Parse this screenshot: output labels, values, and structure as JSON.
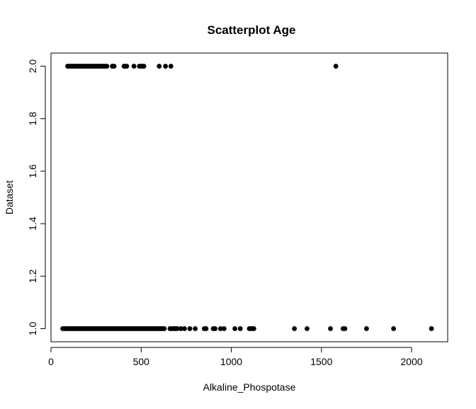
{
  "chart_data": {
    "type": "scatter",
    "title": "Scatterplot Age",
    "xlabel": "Alkaline_Phospotase",
    "ylabel": "Dataset",
    "xlim": [
      0,
      2200
    ],
    "ylim": [
      0.95,
      2.05
    ],
    "x_ticks": [
      0,
      500,
      1000,
      1500,
      2000
    ],
    "y_ticks": [
      1.0,
      1.2,
      1.4,
      1.6,
      1.8,
      2.0
    ],
    "x_tick_labels": [
      "0",
      "500",
      "1000",
      "1500",
      "2000"
    ],
    "y_tick_labels": [
      "1.0",
      "1.2",
      "1.4",
      "1.6",
      "1.8",
      "2.0"
    ],
    "grid": false,
    "point_color": "#000000",
    "series": [
      {
        "y": 2,
        "x": [
          92,
          100,
          108,
          115,
          122,
          128,
          135,
          142,
          150,
          158,
          165,
          172,
          180,
          188,
          195,
          202,
          210,
          218,
          225,
          232,
          240,
          248,
          255,
          262,
          270,
          278,
          285,
          292,
          300,
          310,
          340,
          350,
          405,
          412,
          420,
          460,
          490,
          500,
          508,
          515,
          600,
          635,
          665,
          1580
        ]
      },
      {
        "y": 1,
        "x": [
          65,
          75,
          85,
          95,
          102,
          110,
          118,
          125,
          132,
          140,
          148,
          155,
          162,
          170,
          178,
          185,
          192,
          200,
          208,
          215,
          222,
          230,
          238,
          245,
          252,
          260,
          268,
          275,
          282,
          290,
          298,
          305,
          312,
          320,
          328,
          335,
          342,
          350,
          358,
          365,
          372,
          380,
          388,
          395,
          402,
          410,
          418,
          425,
          432,
          440,
          448,
          455,
          462,
          470,
          478,
          485,
          492,
          500,
          508,
          515,
          522,
          530,
          538,
          545,
          552,
          560,
          568,
          575,
          582,
          590,
          598,
          605,
          612,
          620,
          628,
          660,
          670,
          680,
          690,
          700,
          720,
          740,
          770,
          800,
          850,
          860,
          900,
          910,
          940,
          960,
          1020,
          1050,
          1100,
          1110,
          1120,
          1125,
          1350,
          1420,
          1550,
          1620,
          1630,
          1750,
          1900,
          2110
        ]
      }
    ]
  }
}
